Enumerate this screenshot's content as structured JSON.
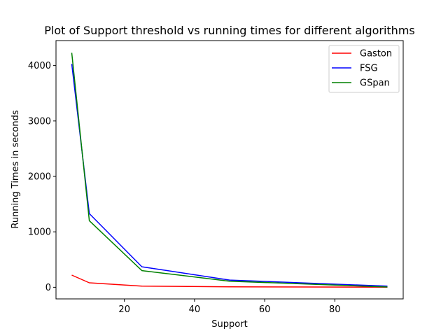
{
  "chart_data": {
    "type": "line",
    "title": "Plot of Support threshold vs running times for different algorithms",
    "xlabel": "Support",
    "ylabel": "Running Times in seconds",
    "x": [
      5,
      10,
      25,
      50,
      95
    ],
    "xlim": [
      0.5,
      99.5
    ],
    "ylim": [
      -210,
      4450
    ],
    "xticks": [
      20,
      40,
      60,
      80
    ],
    "yticks": [
      0,
      1000,
      2000,
      3000,
      4000
    ],
    "grid": false,
    "legend_position": "top-right",
    "series": [
      {
        "name": "Gaston",
        "color": "#ff0000",
        "values": [
          220,
          80,
          20,
          8,
          2
        ]
      },
      {
        "name": "FSG",
        "color": "#0000ff",
        "values": [
          4030,
          1330,
          370,
          130,
          20
        ]
      },
      {
        "name": "GSpan",
        "color": "#008000",
        "values": [
          4230,
          1200,
          300,
          110,
          5
        ]
      }
    ]
  }
}
